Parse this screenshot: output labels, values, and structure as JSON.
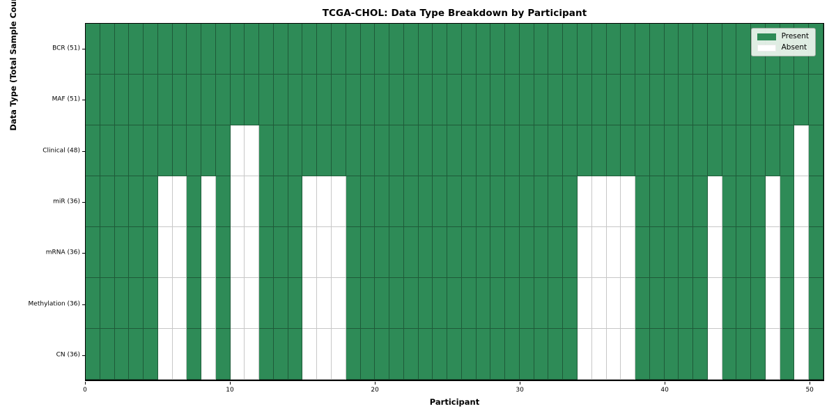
{
  "chart_data": {
    "type": "heatmap",
    "title": "TCGA-CHOL: Data Type Breakdown by Participant",
    "xlabel": "Participant",
    "ylabel": "Data Type (Total Sample Count)",
    "n_participants": 51,
    "xlim": [
      0,
      51
    ],
    "x_ticks": [
      0,
      10,
      20,
      30,
      40,
      50
    ],
    "grid": true,
    "legend_position": "upper right",
    "colors": {
      "present": "#2e8b57",
      "absent": "#ffffff"
    },
    "legend": {
      "present_label": "Present",
      "absent_label": "Absent"
    },
    "rows": [
      {
        "label": "BCR (51)",
        "total": 51,
        "absent": []
      },
      {
        "label": "MAF (51)",
        "total": 51,
        "absent": []
      },
      {
        "label": "Clinical (48)",
        "total": 48,
        "absent": [
          10,
          11,
          49
        ]
      },
      {
        "label": "miR (36)",
        "total": 36,
        "absent": [
          5,
          6,
          8,
          10,
          11,
          15,
          16,
          17,
          34,
          35,
          36,
          37,
          43,
          47,
          49
        ]
      },
      {
        "label": "mRNA (36)",
        "total": 36,
        "absent": [
          5,
          6,
          8,
          10,
          11,
          15,
          16,
          17,
          34,
          35,
          36,
          37,
          43,
          47,
          49
        ]
      },
      {
        "label": "Methylation (36)",
        "total": 36,
        "absent": [
          5,
          6,
          8,
          10,
          11,
          15,
          16,
          17,
          34,
          35,
          36,
          37,
          43,
          47,
          49
        ]
      },
      {
        "label": "CN (36)",
        "total": 36,
        "absent": [
          5,
          6,
          8,
          10,
          11,
          15,
          16,
          17,
          34,
          35,
          36,
          37,
          43,
          47,
          49
        ]
      }
    ]
  }
}
